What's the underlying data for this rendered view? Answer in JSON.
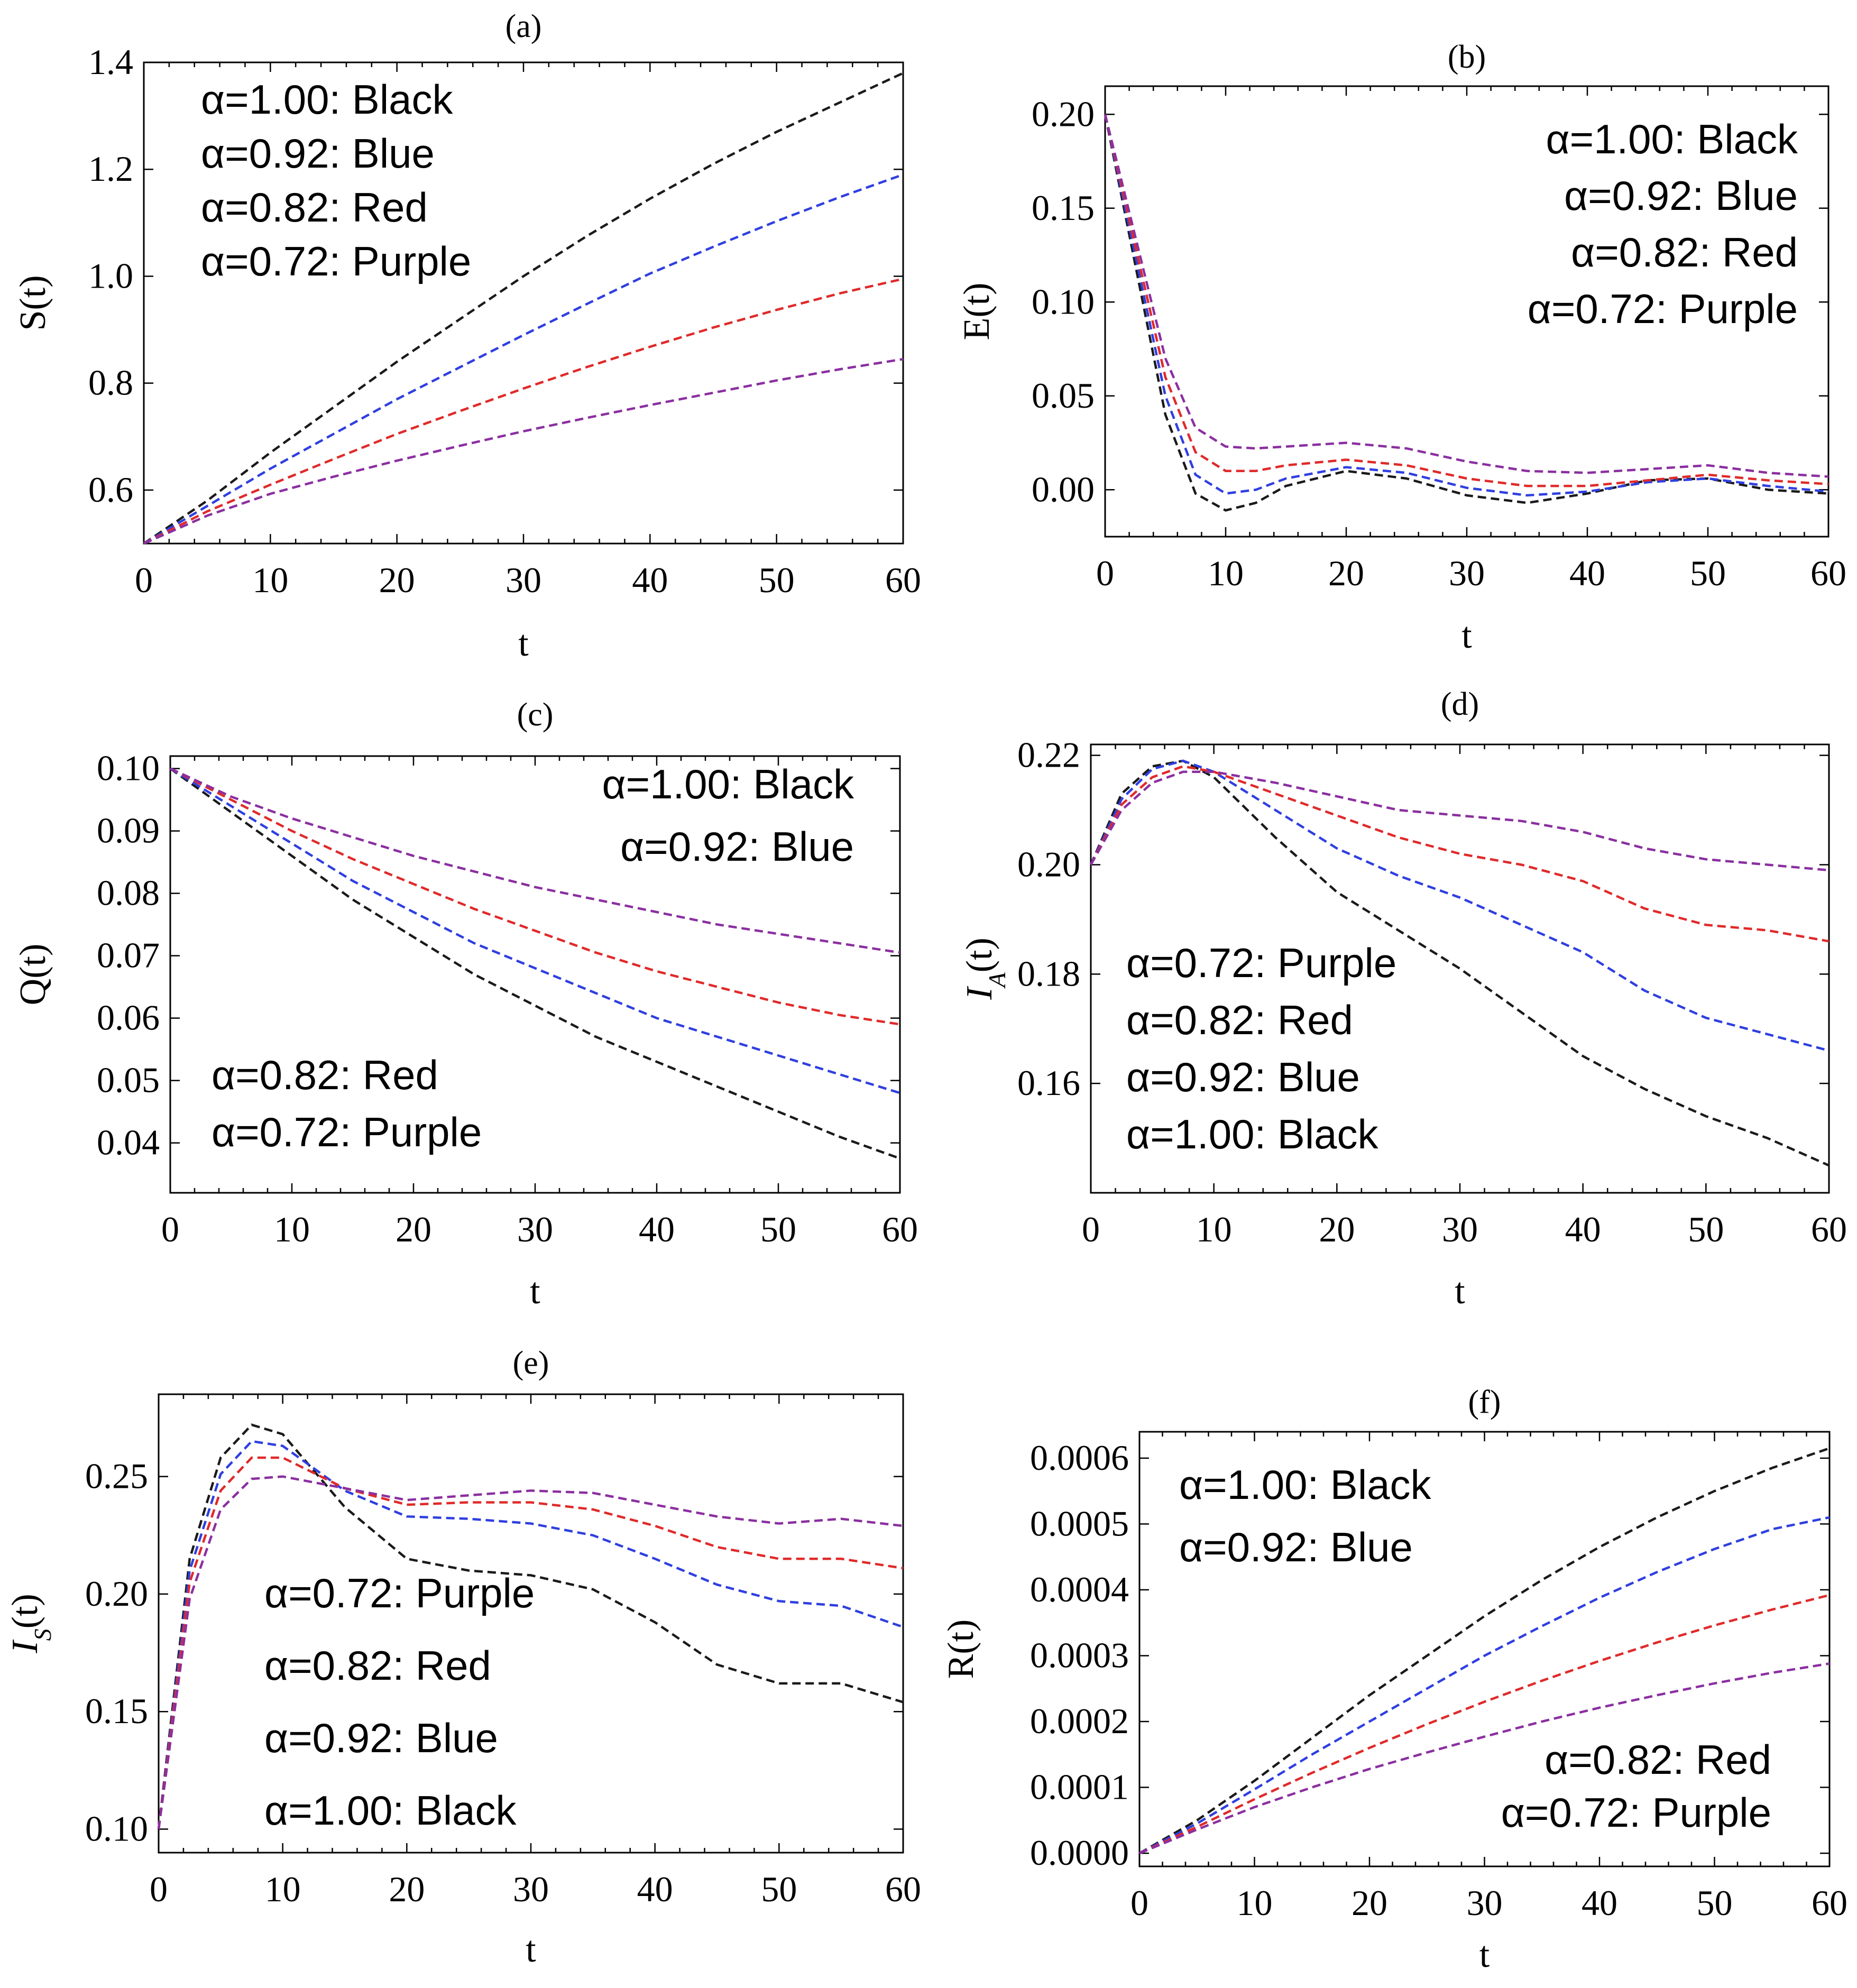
{
  "figure": {
    "panels": [
      {
        "panel": "(a)",
        "chart_data": {
          "type": "line",
          "title": "(a)",
          "xlabel": "t",
          "ylabel": "S(t)",
          "xlim": [
            0,
            60
          ],
          "ylim": [
            0.5,
            1.4
          ],
          "xticks": [
            0,
            10,
            20,
            30,
            40,
            50,
            60
          ],
          "yticks": [
            0.6,
            0.8,
            1.0,
            1.2,
            1.4
          ],
          "ytick_labels": [
            "0.6",
            "0.8",
            "1.0",
            "1.2",
            "1.4"
          ],
          "x": [
            0,
            5,
            10,
            15,
            20,
            25,
            30,
            35,
            40,
            45,
            50,
            55,
            60
          ],
          "series": [
            {
              "name": "α=1.00",
              "color": "#1a1a1a",
              "values": [
                0.5,
                0.58,
                0.67,
                0.755,
                0.84,
                0.92,
                1.0,
                1.075,
                1.145,
                1.21,
                1.27,
                1.325,
                1.38
              ]
            },
            {
              "name": "α=0.92",
              "color": "#2f3fe0",
              "values": [
                0.5,
                0.57,
                0.64,
                0.705,
                0.77,
                0.83,
                0.89,
                0.948,
                1.005,
                1.055,
                1.103,
                1.148,
                1.19
              ]
            },
            {
              "name": "α=0.82",
              "color": "#e02a2a",
              "values": [
                0.5,
                0.56,
                0.61,
                0.658,
                0.705,
                0.748,
                0.79,
                0.83,
                0.868,
                0.904,
                0.937,
                0.968,
                0.995
              ]
            },
            {
              "name": "α=0.72",
              "color": "#8b2fa0",
              "values": [
                0.5,
                0.552,
                0.593,
                0.625,
                0.655,
                0.683,
                0.71,
                0.735,
                0.759,
                0.782,
                0.805,
                0.826,
                0.845
              ]
            }
          ],
          "legend": [
            "α=1.00:  Black",
            "α=0.92:  Blue",
            "α=0.82:  Red",
            "α=0.72:  Purple"
          ]
        }
      },
      {
        "panel": "(b)",
        "chart_data": {
          "type": "line",
          "title": "(b)",
          "xlabel": "t",
          "ylabel": "E(t)",
          "xlim": [
            0,
            60
          ],
          "ylim": [
            -0.025,
            0.215
          ],
          "xticks": [
            0,
            10,
            20,
            30,
            40,
            50,
            60
          ],
          "yticks": [
            0.0,
            0.05,
            0.1,
            0.15,
            0.2
          ],
          "ytick_labels": [
            "0.00",
            "0.05",
            "0.10",
            "0.15",
            "0.20"
          ],
          "x": [
            0,
            2.5,
            5,
            7.5,
            10,
            12.5,
            15,
            20,
            25,
            30,
            35,
            40,
            45,
            50,
            55,
            60
          ],
          "series": [
            {
              "name": "α=1.00",
              "color": "#1a1a1a",
              "values": [
                0.2,
                0.12,
                0.04,
                -0.002,
                -0.011,
                -0.007,
                0.002,
                0.01,
                0.006,
                -0.003,
                -0.007,
                -0.002,
                0.005,
                0.006,
                0.0,
                -0.002
              ]
            },
            {
              "name": "α=0.92",
              "color": "#2f3fe0",
              "values": [
                0.2,
                0.125,
                0.05,
                0.008,
                -0.002,
                0.0,
                0.006,
                0.012,
                0.009,
                0.001,
                -0.003,
                -0.001,
                0.004,
                0.006,
                0.002,
                -0.001
              ]
            },
            {
              "name": "α=0.82",
              "color": "#e02a2a",
              "values": [
                0.2,
                0.13,
                0.06,
                0.02,
                0.01,
                0.01,
                0.013,
                0.016,
                0.013,
                0.006,
                0.002,
                0.002,
                0.005,
                0.008,
                0.005,
                0.003
              ]
            },
            {
              "name": "α=0.72",
              "color": "#8b2fa0",
              "values": [
                0.2,
                0.135,
                0.07,
                0.033,
                0.023,
                0.022,
                0.023,
                0.025,
                0.022,
                0.015,
                0.01,
                0.009,
                0.011,
                0.013,
                0.009,
                0.007
              ]
            }
          ],
          "legend": [
            "α=1.00:  Black",
            "α=0.92:  Blue",
            "α=0.82:  Red",
            "α=0.72:  Purple"
          ]
        }
      },
      {
        "panel": "(c)",
        "chart_data": {
          "type": "line",
          "title": "(c)",
          "xlabel": "t",
          "ylabel": "Q(t)",
          "xlim": [
            0,
            60
          ],
          "ylim": [
            0.032,
            0.102
          ],
          "xticks": [
            0,
            10,
            20,
            30,
            40,
            50,
            60
          ],
          "yticks": [
            0.04,
            0.05,
            0.06,
            0.07,
            0.08,
            0.09,
            0.1
          ],
          "ytick_labels": [
            "0.04",
            "0.05",
            "0.06",
            "0.07",
            "0.08",
            "0.09",
            "0.10"
          ],
          "x": [
            0,
            5,
            10,
            15,
            20,
            25,
            30,
            35,
            40,
            45,
            50,
            55,
            60
          ],
          "series": [
            {
              "name": "α=1.00",
              "color": "#1a1a1a",
              "values": [
                0.1,
                0.093,
                0.086,
                0.079,
                0.073,
                0.067,
                0.062,
                0.057,
                0.053,
                0.049,
                0.045,
                0.041,
                0.0375
              ]
            },
            {
              "name": "α=0.92",
              "color": "#2f3fe0",
              "values": [
                0.1,
                0.094,
                0.088,
                0.082,
                0.077,
                0.072,
                0.068,
                0.064,
                0.06,
                0.057,
                0.054,
                0.051,
                0.048
              ]
            },
            {
              "name": "α=0.82",
              "color": "#e02a2a",
              "values": [
                0.1,
                0.095,
                0.09,
                0.0855,
                0.0815,
                0.0775,
                0.074,
                0.0705,
                0.0675,
                0.065,
                0.0625,
                0.0605,
                0.059
              ]
            },
            {
              "name": "α=0.72",
              "color": "#8b2fa0",
              "values": [
                0.1,
                0.0955,
                0.092,
                0.089,
                0.086,
                0.0835,
                0.081,
                0.079,
                0.077,
                0.075,
                0.0735,
                0.072,
                0.0705
              ]
            }
          ],
          "legend": [
            "α=1.00:  Black",
            "α=0.92:  Blue",
            "α=0.82:  Red",
            "α=0.72:  Purple"
          ]
        }
      },
      {
        "panel": "(d)",
        "chart_data": {
          "type": "line",
          "title": "(d)",
          "xlabel": "t",
          "ylabel": "I_A(t)",
          "xlim": [
            0,
            60
          ],
          "ylim": [
            0.14,
            0.222
          ],
          "xticks": [
            0,
            10,
            20,
            30,
            40,
            50,
            60
          ],
          "yticks": [
            0.16,
            0.18,
            0.2,
            0.22
          ],
          "ytick_labels": [
            "0.16",
            "0.18",
            "0.20",
            "0.22"
          ],
          "x": [
            0,
            2.5,
            5,
            7.5,
            10,
            15,
            20,
            25,
            30,
            35,
            40,
            45,
            50,
            55,
            60
          ],
          "series": [
            {
              "name": "α=1.00",
              "color": "#1a1a1a",
              "values": [
                0.2,
                0.213,
                0.218,
                0.219,
                0.216,
                0.205,
                0.195,
                0.188,
                0.181,
                0.173,
                0.165,
                0.159,
                0.154,
                0.15,
                0.145
              ]
            },
            {
              "name": "α=0.92",
              "color": "#2f3fe0",
              "values": [
                0.2,
                0.212,
                0.2175,
                0.219,
                0.217,
                0.21,
                0.203,
                0.198,
                0.194,
                0.189,
                0.184,
                0.177,
                0.172,
                0.169,
                0.166
              ]
            },
            {
              "name": "α=0.82",
              "color": "#e02a2a",
              "values": [
                0.2,
                0.211,
                0.216,
                0.218,
                0.217,
                0.213,
                0.209,
                0.205,
                0.202,
                0.2,
                0.197,
                0.192,
                0.189,
                0.188,
                0.186
              ]
            },
            {
              "name": "α=0.72",
              "color": "#8b2fa0",
              "values": [
                0.2,
                0.21,
                0.215,
                0.217,
                0.217,
                0.215,
                0.2125,
                0.21,
                0.209,
                0.208,
                0.206,
                0.203,
                0.201,
                0.2,
                0.199
              ]
            }
          ],
          "legend": [
            "α=0.72:  Purple",
            "α=0.82:  Red",
            "α=0.92:  Blue",
            "α=1.00:  Black"
          ]
        }
      },
      {
        "panel": "(e)",
        "chart_data": {
          "type": "line",
          "title": "(e)",
          "xlabel": "t",
          "ylabel": "I_S(t)",
          "xlim": [
            0,
            60
          ],
          "ylim": [
            0.09,
            0.285
          ],
          "xticks": [
            0,
            10,
            20,
            30,
            40,
            50,
            60
          ],
          "yticks": [
            0.1,
            0.15,
            0.2,
            0.25
          ],
          "ytick_labels": [
            "0.10",
            "0.15",
            "0.20",
            "0.25"
          ],
          "x": [
            0,
            2.5,
            5,
            7.5,
            10,
            15,
            20,
            25,
            30,
            35,
            40,
            45,
            50,
            55,
            60
          ],
          "series": [
            {
              "name": "α=1.00",
              "color": "#1a1a1a",
              "values": [
                0.1,
                0.215,
                0.258,
                0.272,
                0.268,
                0.237,
                0.215,
                0.21,
                0.208,
                0.202,
                0.188,
                0.17,
                0.162,
                0.162,
                0.154
              ]
            },
            {
              "name": "α=0.92",
              "color": "#2f3fe0",
              "values": [
                0.1,
                0.21,
                0.251,
                0.265,
                0.263,
                0.244,
                0.233,
                0.232,
                0.23,
                0.225,
                0.215,
                0.204,
                0.197,
                0.195,
                0.186
              ]
            },
            {
              "name": "α=0.82",
              "color": "#e02a2a",
              "values": [
                0.1,
                0.205,
                0.244,
                0.258,
                0.258,
                0.245,
                0.238,
                0.239,
                0.239,
                0.236,
                0.229,
                0.22,
                0.215,
                0.215,
                0.211
              ]
            },
            {
              "name": "α=0.72",
              "color": "#8b2fa0",
              "values": [
                0.1,
                0.198,
                0.236,
                0.249,
                0.25,
                0.245,
                0.24,
                0.242,
                0.244,
                0.243,
                0.238,
                0.233,
                0.23,
                0.232,
                0.229
              ]
            }
          ],
          "legend": [
            "α=0.72:  Purple",
            "α=0.82:  Red",
            "α=0.92:  Blue",
            "α=1.00:  Black"
          ]
        }
      },
      {
        "panel": "(f)",
        "chart_data": {
          "type": "line",
          "title": "(f)",
          "xlabel": "t",
          "ylabel": "R(t)",
          "xlim": [
            0,
            60
          ],
          "ylim": [
            -2e-05,
            0.00064
          ],
          "xticks": [
            0,
            10,
            20,
            30,
            40,
            50,
            60
          ],
          "yticks": [
            0.0,
            0.0001,
            0.0002,
            0.0003,
            0.0004,
            0.0005,
            0.0006
          ],
          "ytick_labels": [
            "0.0000",
            "0.0001",
            "0.0002",
            "0.0003",
            "0.0004",
            "0.0005",
            "0.0006"
          ],
          "x": [
            0,
            5,
            10,
            15,
            20,
            25,
            30,
            35,
            40,
            45,
            50,
            55,
            60
          ],
          "series": [
            {
              "name": "α=1.00",
              "color": "#1a1a1a",
              "values": [
                0.0,
                5e-05,
                0.00011,
                0.000175,
                0.00024,
                0.0003,
                0.00036,
                0.000415,
                0.000465,
                0.00051,
                0.00055,
                0.000585,
                0.000615
              ]
            },
            {
              "name": "α=0.92",
              "color": "#2f3fe0",
              "values": [
                0.0,
                4.5e-05,
                9.7e-05,
                0.00015,
                0.0002,
                0.00025,
                0.0003,
                0.000345,
                0.000388,
                0.000427,
                0.000462,
                0.000492,
                0.00051
              ]
            },
            {
              "name": "α=0.82",
              "color": "#e02a2a",
              "values": [
                0.0,
                4e-05,
                8.2e-05,
                0.000122,
                0.00016,
                0.000196,
                0.00023,
                0.000262,
                0.000292,
                0.00032,
                0.000346,
                0.00037,
                0.000392
              ]
            },
            {
              "name": "α=0.72",
              "color": "#8b2fa0",
              "values": [
                0.0,
                3.6e-05,
                7e-05,
                0.0001,
                0.000128,
                0.000153,
                0.000177,
                0.0002,
                0.000221,
                0.00024,
                0.000258,
                0.000274,
                0.000288
              ]
            }
          ],
          "legend": [
            "α=1.00:  Black",
            "α=0.92:  Blue",
            "α=0.82:  Red",
            "α=0.72:  Purple"
          ]
        }
      }
    ]
  }
}
